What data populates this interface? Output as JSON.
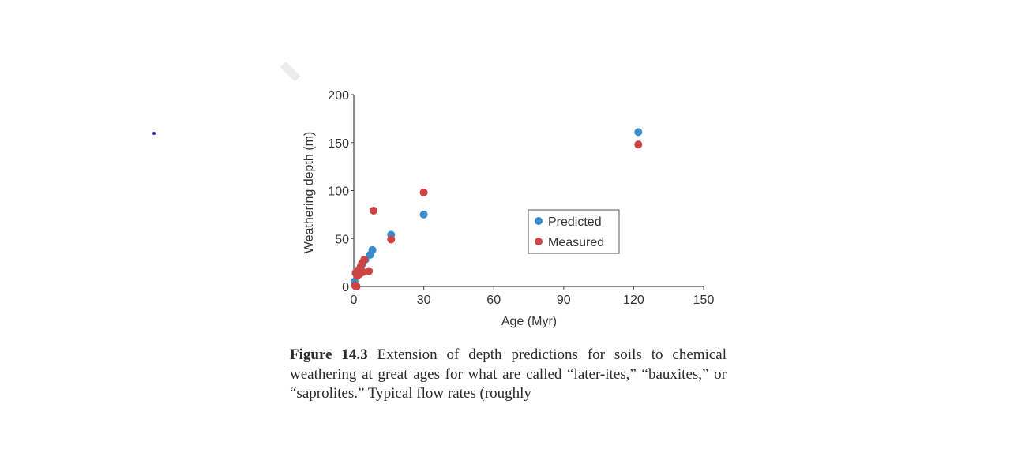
{
  "colors": {
    "predicted": "#3a8ccc",
    "measured": "#cc4444",
    "axis": "#444444"
  },
  "chart_data": {
    "type": "scatter",
    "title": "",
    "xlabel": "Age (Myr)",
    "ylabel": "Weathering depth (m)",
    "xlim": [
      0,
      150
    ],
    "ylim": [
      0,
      200
    ],
    "xticks": [
      0,
      30,
      60,
      90,
      120,
      150
    ],
    "yticks": [
      0,
      50,
      100,
      150,
      200
    ],
    "grid": false,
    "legend_position": "center-right",
    "series": [
      {
        "name": "Predicted",
        "color": "#3a8ccc",
        "points": [
          {
            "x": 0.3,
            "y": 5
          },
          {
            "x": 1.5,
            "y": 12
          },
          {
            "x": 2.5,
            "y": 18
          },
          {
            "x": 3.5,
            "y": 23
          },
          {
            "x": 5,
            "y": 28
          },
          {
            "x": 7,
            "y": 33
          },
          {
            "x": 8,
            "y": 38
          },
          {
            "x": 16,
            "y": 54
          },
          {
            "x": 30,
            "y": 75
          },
          {
            "x": 122,
            "y": 161
          }
        ]
      },
      {
        "name": "Measured",
        "color": "#cc4444",
        "points": [
          {
            "x": 0.5,
            "y": 1
          },
          {
            "x": 1.2,
            "y": 0
          },
          {
            "x": 0.8,
            "y": 14
          },
          {
            "x": 1.5,
            "y": 11
          },
          {
            "x": 2,
            "y": 17
          },
          {
            "x": 2.5,
            "y": 13
          },
          {
            "x": 3,
            "y": 21
          },
          {
            "x": 3.5,
            "y": 24
          },
          {
            "x": 4,
            "y": 15
          },
          {
            "x": 4.5,
            "y": 28
          },
          {
            "x": 6.5,
            "y": 16
          },
          {
            "x": 8.5,
            "y": 79
          },
          {
            "x": 16,
            "y": 49
          },
          {
            "x": 30,
            "y": 98
          },
          {
            "x": 122,
            "y": 148
          }
        ]
      }
    ]
  },
  "caption": {
    "label": "Figure 14.3",
    "text": " Extension of depth predictions for soils to chemical weathering at great ages for what are called “later-ites,” “bauxites,” or “saprolites.” Typical flow rates (roughly"
  }
}
